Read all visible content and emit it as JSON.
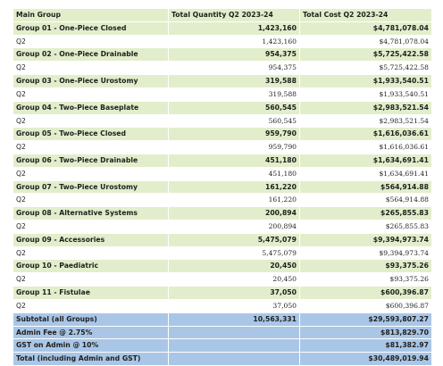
{
  "headers": {
    "group": "Main Group",
    "quantity": "Total Quantity Q2 2023-24",
    "cost": "Total Cost Q2 2023-24"
  },
  "rows": [
    {
      "name": "Group 01 - One-Piece Closed",
      "quantity": "1,423,160",
      "cost": "$4,781,078.04",
      "sub_label": "Q2",
      "sub_quantity": "1,423,160",
      "sub_cost": "$4,781,078.04"
    },
    {
      "name": "Group 02 - One-Piece Drainable",
      "quantity": "954,375",
      "cost": "$5,725,422.58",
      "sub_label": "Q2",
      "sub_quantity": "954,375",
      "sub_cost": "$5,725,422.58"
    },
    {
      "name": "Group 03 - One-Piece Urostomy",
      "quantity": "319,588",
      "cost": "$1,933,540.51",
      "sub_label": "Q2",
      "sub_quantity": "319,588",
      "sub_cost": "$1,933,540.51"
    },
    {
      "name": "Group 04 - Two-Piece Baseplate",
      "quantity": "560,545",
      "cost": "$2,983,521.54",
      "sub_label": "Q2",
      "sub_quantity": "560,545",
      "sub_cost": "$2,983,521.54"
    },
    {
      "name": "Group 05 - Two-Piece Closed",
      "quantity": "959,790",
      "cost": "$1,616,036.61",
      "sub_label": "Q2",
      "sub_quantity": "959,790",
      "sub_cost": "$1,616,036.61"
    },
    {
      "name": "Group 06 - Two-Piece Drainable",
      "quantity": "451,180",
      "cost": "$1,634,691.41",
      "sub_label": "Q2",
      "sub_quantity": "451,180",
      "sub_cost": "$1,634,691.41"
    },
    {
      "name": "Group 07 - Two-Piece Urostomy",
      "quantity": "161,220",
      "cost": "$564,914.88",
      "sub_label": "Q2",
      "sub_quantity": "161,220",
      "sub_cost": "$564,914.88"
    },
    {
      "name": "Group 08 - Alternative Systems",
      "quantity": "200,894",
      "cost": "$265,855.83",
      "sub_label": "Q2",
      "sub_quantity": "200,894",
      "sub_cost": "$265,855.83"
    },
    {
      "name": "Group 09 - Accessories",
      "quantity": "5,475,079",
      "cost": "$9,394,973.74",
      "sub_label": "Q2",
      "sub_quantity": "5,475,079",
      "sub_cost": "$9,394,973.74"
    },
    {
      "name": "Group 10 - Paediatric",
      "quantity": "20,450",
      "cost": "$93,375.26",
      "sub_label": "Q2",
      "sub_quantity": "20,450",
      "sub_cost": "$93,375.26"
    },
    {
      "name": "Group 11 - Fistulae",
      "quantity": "37,050",
      "cost": "$600,396.87",
      "sub_label": "Q2",
      "sub_quantity": "37,050",
      "sub_cost": "$600,396.87"
    }
  ],
  "summary": [
    {
      "label": "Subtotal (all Groups)",
      "quantity": "10,563,331",
      "cost": "$29,593,807.27"
    },
    {
      "label": "Admin Fee @ 2.75%",
      "quantity": "",
      "cost": "$813,829.70"
    },
    {
      "label": "GST on Admin @ 10%",
      "quantity": "",
      "cost": "$81,382.97"
    },
    {
      "label": "Total (including Admin and GST)",
      "quantity": "",
      "cost": "$30,489,019.94"
    }
  ]
}
